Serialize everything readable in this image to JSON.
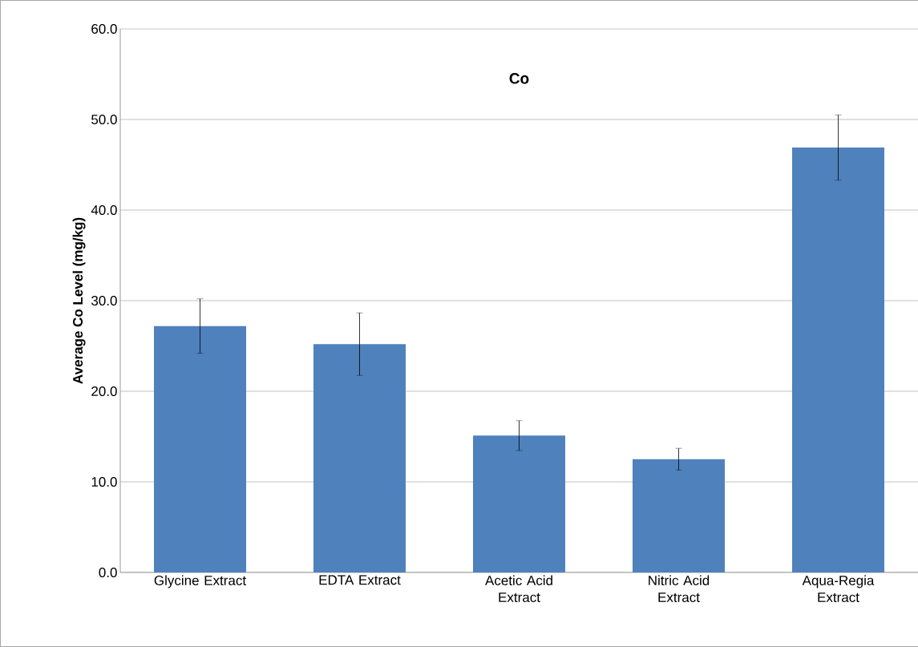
{
  "chart_data": {
    "type": "bar",
    "title": "Co",
    "ylabel": "Average Co Level (mg/kg)",
    "categories": [
      "Glycine Extract",
      "EDTA Extract",
      "Acetic Acid Extract",
      "Nitric Acid Extract",
      "Aqua-Regia Extract"
    ],
    "values": [
      27.2,
      25.2,
      15.1,
      12.5,
      46.9
    ],
    "errors": [
      3.0,
      3.45,
      1.65,
      1.2,
      3.6
    ],
    "color": "#4f81bd",
    "ylim": [
      0,
      60
    ],
    "yticks": [
      {
        "value": 0,
        "label": "0.0"
      },
      {
        "value": 10,
        "label": "10.0"
      },
      {
        "value": 20,
        "label": "20.0"
      },
      {
        "value": 30,
        "label": "30.0"
      },
      {
        "value": 40,
        "label": "40.0"
      },
      {
        "value": 50,
        "label": "50.0"
      },
      {
        "value": 60,
        "label": "60.0"
      }
    ],
    "grid": "y"
  }
}
